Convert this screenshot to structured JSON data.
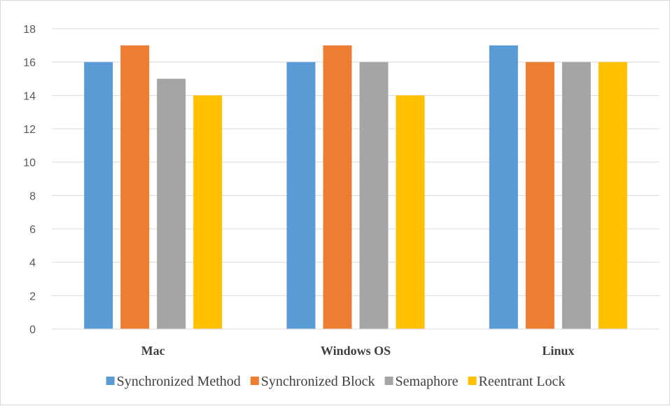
{
  "chart_data": {
    "type": "bar",
    "title": "",
    "xlabel": "",
    "ylabel": "",
    "categories": [
      "Mac",
      "Windows OS",
      "Linux"
    ],
    "series": [
      {
        "name": "Synchronized Method",
        "values": [
          16,
          16,
          17
        ],
        "color": "#5b9bd5"
      },
      {
        "name": "Synchronized Block",
        "values": [
          17,
          17,
          16
        ],
        "color": "#ed7d31"
      },
      {
        "name": "Semaphore",
        "values": [
          15,
          16,
          16
        ],
        "color": "#a5a5a5"
      },
      {
        "name": "Reentrant Lock",
        "values": [
          14,
          14,
          16
        ],
        "color": "#ffc000"
      }
    ],
    "ylim": [
      0,
      18
    ],
    "yticks": [
      "0",
      "2",
      "4",
      "6",
      "8",
      "10",
      "12",
      "14",
      "16",
      "18"
    ],
    "grid": true,
    "legend_position": "bottom",
    "gridline_color": "#d9d9d9"
  }
}
